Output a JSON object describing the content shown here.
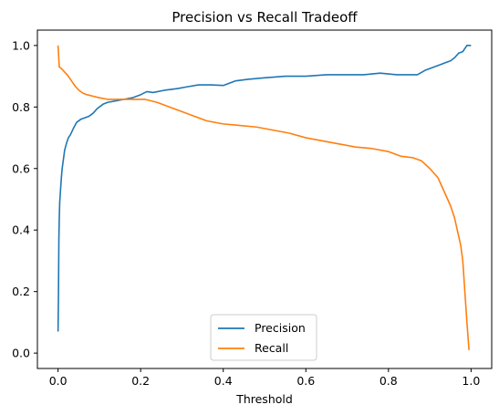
{
  "chart_data": {
    "type": "line",
    "title": "Precision vs Recall Tradeoff",
    "xlabel": "Threshold",
    "ylabel": "",
    "xlim": [
      -0.05,
      1.05
    ],
    "ylim": [
      -0.05,
      1.05
    ],
    "xticks": [
      "0.0",
      "0.2",
      "0.4",
      "0.6",
      "0.8",
      "1.0"
    ],
    "yticks": [
      "0.0",
      "0.2",
      "0.4",
      "0.6",
      "0.8",
      "1.0"
    ],
    "grid": false,
    "legend_position": "lower center",
    "series": [
      {
        "name": "Precision",
        "color": "#1f77b4",
        "x": [
          0.0,
          0.001,
          0.002,
          0.003,
          0.004,
          0.006,
          0.008,
          0.01,
          0.013,
          0.016,
          0.02,
          0.025,
          0.03,
          0.037,
          0.045,
          0.055,
          0.065,
          0.075,
          0.085,
          0.095,
          0.11,
          0.12,
          0.14,
          0.16,
          0.18,
          0.2,
          0.215,
          0.23,
          0.26,
          0.29,
          0.31,
          0.34,
          0.37,
          0.4,
          0.43,
          0.46,
          0.5,
          0.55,
          0.6,
          0.65,
          0.7,
          0.74,
          0.78,
          0.82,
          0.85,
          0.87,
          0.89,
          0.91,
          0.93,
          0.94,
          0.95,
          0.96,
          0.97,
          0.98,
          0.99,
          1.0
        ],
        "y": [
          0.07,
          0.19,
          0.37,
          0.44,
          0.49,
          0.53,
          0.57,
          0.6,
          0.63,
          0.66,
          0.68,
          0.7,
          0.71,
          0.73,
          0.75,
          0.76,
          0.765,
          0.77,
          0.78,
          0.795,
          0.81,
          0.815,
          0.82,
          0.825,
          0.83,
          0.84,
          0.85,
          0.847,
          0.855,
          0.86,
          0.865,
          0.872,
          0.872,
          0.87,
          0.885,
          0.89,
          0.895,
          0.9,
          0.9,
          0.905,
          0.905,
          0.905,
          0.91,
          0.905,
          0.905,
          0.905,
          0.92,
          0.93,
          0.94,
          0.945,
          0.95,
          0.96,
          0.975,
          0.98,
          1.0,
          1.0
        ]
      },
      {
        "name": "Recall",
        "color": "#ff7f0e",
        "x": [
          0.0,
          0.003,
          0.008,
          0.015,
          0.022,
          0.03,
          0.04,
          0.05,
          0.06,
          0.07,
          0.085,
          0.1,
          0.12,
          0.15,
          0.18,
          0.21,
          0.24,
          0.27,
          0.3,
          0.33,
          0.36,
          0.4,
          0.44,
          0.48,
          0.52,
          0.56,
          0.6,
          0.64,
          0.68,
          0.72,
          0.76,
          0.8,
          0.83,
          0.86,
          0.88,
          0.9,
          0.92,
          0.93,
          0.94,
          0.95,
          0.96,
          0.97,
          0.975,
          0.98,
          0.985,
          0.99,
          0.995
        ],
        "y": [
          1.0,
          0.93,
          0.925,
          0.915,
          0.905,
          0.89,
          0.87,
          0.855,
          0.845,
          0.84,
          0.835,
          0.83,
          0.825,
          0.825,
          0.825,
          0.825,
          0.815,
          0.8,
          0.785,
          0.77,
          0.755,
          0.745,
          0.74,
          0.735,
          0.725,
          0.715,
          0.7,
          0.69,
          0.68,
          0.67,
          0.665,
          0.655,
          0.64,
          0.635,
          0.625,
          0.6,
          0.57,
          0.54,
          0.51,
          0.48,
          0.44,
          0.38,
          0.35,
          0.3,
          0.2,
          0.1,
          0.01
        ]
      }
    ]
  }
}
